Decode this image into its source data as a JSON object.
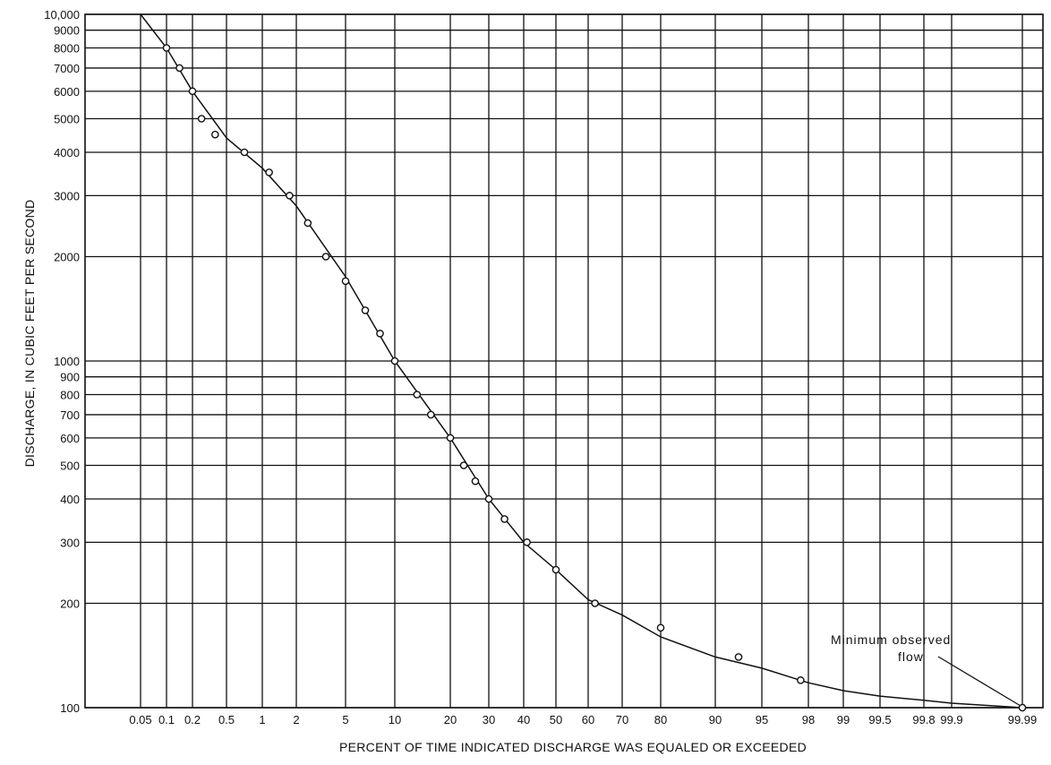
{
  "chart_data": {
    "type": "scatter",
    "title": "",
    "xlabel": "PERCENT OF TIME INDICATED DISCHARGE WAS EQUALED OR EXCEEDED",
    "ylabel": "DISCHARGE, IN CUBIC FEET PER SECOND",
    "x_scale": "probability",
    "y_scale": "log",
    "xlim": [
      0.05,
      99.99
    ],
    "ylim": [
      100,
      10000
    ],
    "grid": true,
    "x_ticks": [
      0.05,
      0.1,
      0.2,
      0.5,
      1,
      2,
      5,
      10,
      20,
      30,
      40,
      50,
      60,
      70,
      80,
      90,
      95,
      98,
      99,
      99.5,
      99.8,
      99.9,
      99.99
    ],
    "x_tick_labels": [
      "0.05",
      "0.1",
      "0.2",
      "0.5",
      "1",
      "2",
      "5",
      "10",
      "20",
      "30",
      "40",
      "50",
      "60",
      "70",
      "80",
      "90",
      "95",
      "98",
      "99",
      "99.5",
      "99.8",
      "99.9",
      "99.99"
    ],
    "y_ticks": [
      100,
      200,
      300,
      400,
      500,
      600,
      700,
      800,
      900,
      1000,
      2000,
      3000,
      4000,
      5000,
      6000,
      7000,
      8000,
      9000,
      10000
    ],
    "y_tick_labels": [
      "100",
      "200",
      "300",
      "400",
      "500",
      "600",
      "700",
      "800",
      "900",
      "1000",
      "2000",
      "3000",
      "4000",
      "5000",
      "6000",
      "7000",
      "8000",
      "9000",
      "10,000"
    ],
    "series": [
      {
        "type": "scatter",
        "points": [
          {
            "x": 0.1,
            "y": 8000
          },
          {
            "x": 0.15,
            "y": 7000
          },
          {
            "x": 0.2,
            "y": 6000
          },
          {
            "x": 0.28,
            "y": 5000
          },
          {
            "x": 0.4,
            "y": 4500
          },
          {
            "x": 0.75,
            "y": 4000
          },
          {
            "x": 1.2,
            "y": 3500
          },
          {
            "x": 1.8,
            "y": 3000
          },
          {
            "x": 2.7,
            "y": 2500
          },
          {
            "x": 3.8,
            "y": 2000
          },
          {
            "x": 5,
            "y": 1700
          },
          {
            "x": 7,
            "y": 1400
          },
          {
            "x": 8.5,
            "y": 1200
          },
          {
            "x": 10,
            "y": 1000
          },
          {
            "x": 14,
            "y": 800
          },
          {
            "x": 16.5,
            "y": 700
          },
          {
            "x": 20,
            "y": 600
          },
          {
            "x": 23.5,
            "y": 500
          },
          {
            "x": 26.5,
            "y": 450
          },
          {
            "x": 30,
            "y": 400
          },
          {
            "x": 34.5,
            "y": 350
          },
          {
            "x": 41,
            "y": 300
          },
          {
            "x": 50,
            "y": 250
          },
          {
            "x": 62,
            "y": 200
          },
          {
            "x": 80,
            "y": 170
          },
          {
            "x": 92.5,
            "y": 140
          },
          {
            "x": 97.5,
            "y": 120
          },
          {
            "x": 99.99,
            "y": 100
          }
        ]
      },
      {
        "type": "line",
        "points": [
          {
            "x": 0.05,
            "y": 10000
          },
          {
            "x": 0.1,
            "y": 8000
          },
          {
            "x": 0.2,
            "y": 6000
          },
          {
            "x": 0.5,
            "y": 4400
          },
          {
            "x": 1,
            "y": 3600
          },
          {
            "x": 2,
            "y": 2800
          },
          {
            "x": 5,
            "y": 1750
          },
          {
            "x": 10,
            "y": 1000
          },
          {
            "x": 20,
            "y": 600
          },
          {
            "x": 30,
            "y": 400
          },
          {
            "x": 40,
            "y": 300
          },
          {
            "x": 50,
            "y": 250
          },
          {
            "x": 60,
            "y": 205
          },
          {
            "x": 70,
            "y": 185
          },
          {
            "x": 80,
            "y": 160
          },
          {
            "x": 90,
            "y": 140
          },
          {
            "x": 95,
            "y": 130
          },
          {
            "x": 98,
            "y": 118
          },
          {
            "x": 99,
            "y": 112
          },
          {
            "x": 99.5,
            "y": 108
          },
          {
            "x": 99.8,
            "y": 105
          },
          {
            "x": 99.9,
            "y": 103
          },
          {
            "x": 99.99,
            "y": 100
          }
        ]
      }
    ],
    "annotation": {
      "line1": "Minimum observed",
      "line2": "flow",
      "x": 99.99,
      "y": 100
    }
  }
}
